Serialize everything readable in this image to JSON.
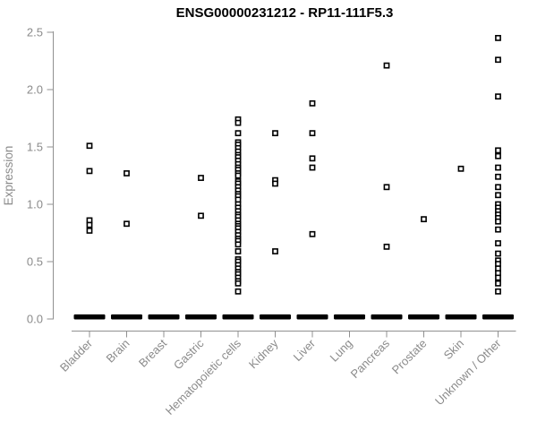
{
  "chart_data": {
    "type": "scatter",
    "subtype": "strip-plot",
    "title": "ENSG00000231212 - RP11-111F5.3",
    "xlabel": "",
    "ylabel": "Expression",
    "ylim": [
      0.0,
      2.5
    ],
    "yticks": [
      0.0,
      0.5,
      1.0,
      1.5,
      2.0,
      2.5
    ],
    "grid": false,
    "legend_position": "none",
    "marker": "open-square",
    "colors": {
      "marker": "#000000",
      "zero_bar": "#000000",
      "axis": "#909090",
      "tick_label": "#8b8b8b",
      "title": "#000000",
      "background": "#ffffff"
    },
    "categories": [
      "Bladder",
      "Brain",
      "Breast",
      "Gastric",
      "Hematopoietic cells",
      "Kidney",
      "Liver",
      "Lung",
      "Pancreas",
      "Prostate",
      "Skin",
      "Unknown / Other"
    ],
    "series": [
      {
        "category": "Bladder",
        "values": [
          1.51,
          1.29,
          0.86,
          0.82,
          0.77
        ],
        "zero_cluster": true
      },
      {
        "category": "Brain",
        "values": [
          1.27,
          0.83
        ],
        "zero_cluster": true
      },
      {
        "category": "Breast",
        "values": [],
        "zero_cluster": true
      },
      {
        "category": "Gastric",
        "values": [
          1.23,
          0.9
        ],
        "zero_cluster": true
      },
      {
        "category": "Hematopoietic cells",
        "values": [
          1.74,
          1.71,
          1.62,
          1.54,
          1.52,
          1.49,
          1.46,
          1.43,
          1.41,
          1.38,
          1.35,
          1.32,
          1.3,
          1.27,
          1.25,
          1.2,
          1.18,
          1.15,
          1.12,
          1.09,
          1.07,
          1.04,
          1.0,
          0.97,
          0.94,
          0.91,
          0.89,
          0.86,
          0.83,
          0.81,
          0.79,
          0.76,
          0.73,
          0.7,
          0.68,
          0.65,
          0.59,
          0.52,
          0.5,
          0.47,
          0.44,
          0.41,
          0.39,
          0.36,
          0.33,
          0.31,
          0.24
        ],
        "zero_cluster": true
      },
      {
        "category": "Kidney",
        "values": [
          1.62,
          1.21,
          1.18,
          0.59
        ],
        "zero_cluster": true
      },
      {
        "category": "Liver",
        "values": [
          1.88,
          1.62,
          1.4,
          1.32,
          0.74
        ],
        "zero_cluster": true
      },
      {
        "category": "Lung",
        "values": [],
        "zero_cluster": true
      },
      {
        "category": "Pancreas",
        "values": [
          2.21,
          1.15,
          0.63
        ],
        "zero_cluster": true
      },
      {
        "category": "Prostate",
        "values": [
          0.87
        ],
        "zero_cluster": true
      },
      {
        "category": "Skin",
        "values": [
          1.31
        ],
        "zero_cluster": true
      },
      {
        "category": "Unknown / Other",
        "values": [
          2.45,
          2.26,
          1.94,
          1.47,
          1.42,
          1.32,
          1.24,
          1.15,
          1.08,
          1.0,
          0.97,
          0.94,
          0.91,
          0.88,
          0.85,
          0.78,
          0.66,
          0.57,
          0.51,
          0.48,
          0.44,
          0.4,
          0.36,
          0.31,
          0.24
        ],
        "zero_cluster": true
      }
    ]
  }
}
